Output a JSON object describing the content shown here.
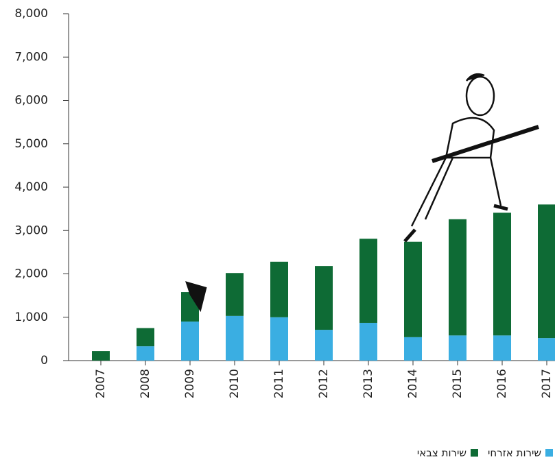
{
  "chart_data": {
    "type": "bar",
    "stacked": true,
    "categories": [
      "2007",
      "2008",
      "2009",
      "2010",
      "2011",
      "2012",
      "2013",
      "2014",
      "2015",
      "2016",
      "2017"
    ],
    "series": [
      {
        "name": "שירות אזרחי",
        "color": "#3aaee2",
        "values": [
          0,
          330,
          900,
          1030,
          1000,
          710,
          870,
          540,
          580,
          580,
          520
        ]
      },
      {
        "name": "שירות צבאי",
        "color": "#0e6b35",
        "values": [
          220,
          420,
          680,
          990,
          1280,
          1470,
          1940,
          2200,
          2680,
          2830,
          3080
        ]
      }
    ],
    "ylim": [
      0,
      8000
    ],
    "yticks": [
      0,
      {
        "value": 1000,
        "label": "1,000"
      },
      {
        "value": 2000,
        "label": "2,000"
      },
      {
        "value": 3000,
        "label": "3,000"
      },
      {
        "value": 4000,
        "label": "4,000"
      },
      {
        "value": 5000,
        "label": "5,000"
      },
      {
        "value": 6000,
        "label": "6,000"
      },
      {
        "value": 7000,
        "label": "7,000"
      },
      {
        "value": 8000,
        "label": "8,000"
      }
    ],
    "legend": "bottom-right"
  }
}
